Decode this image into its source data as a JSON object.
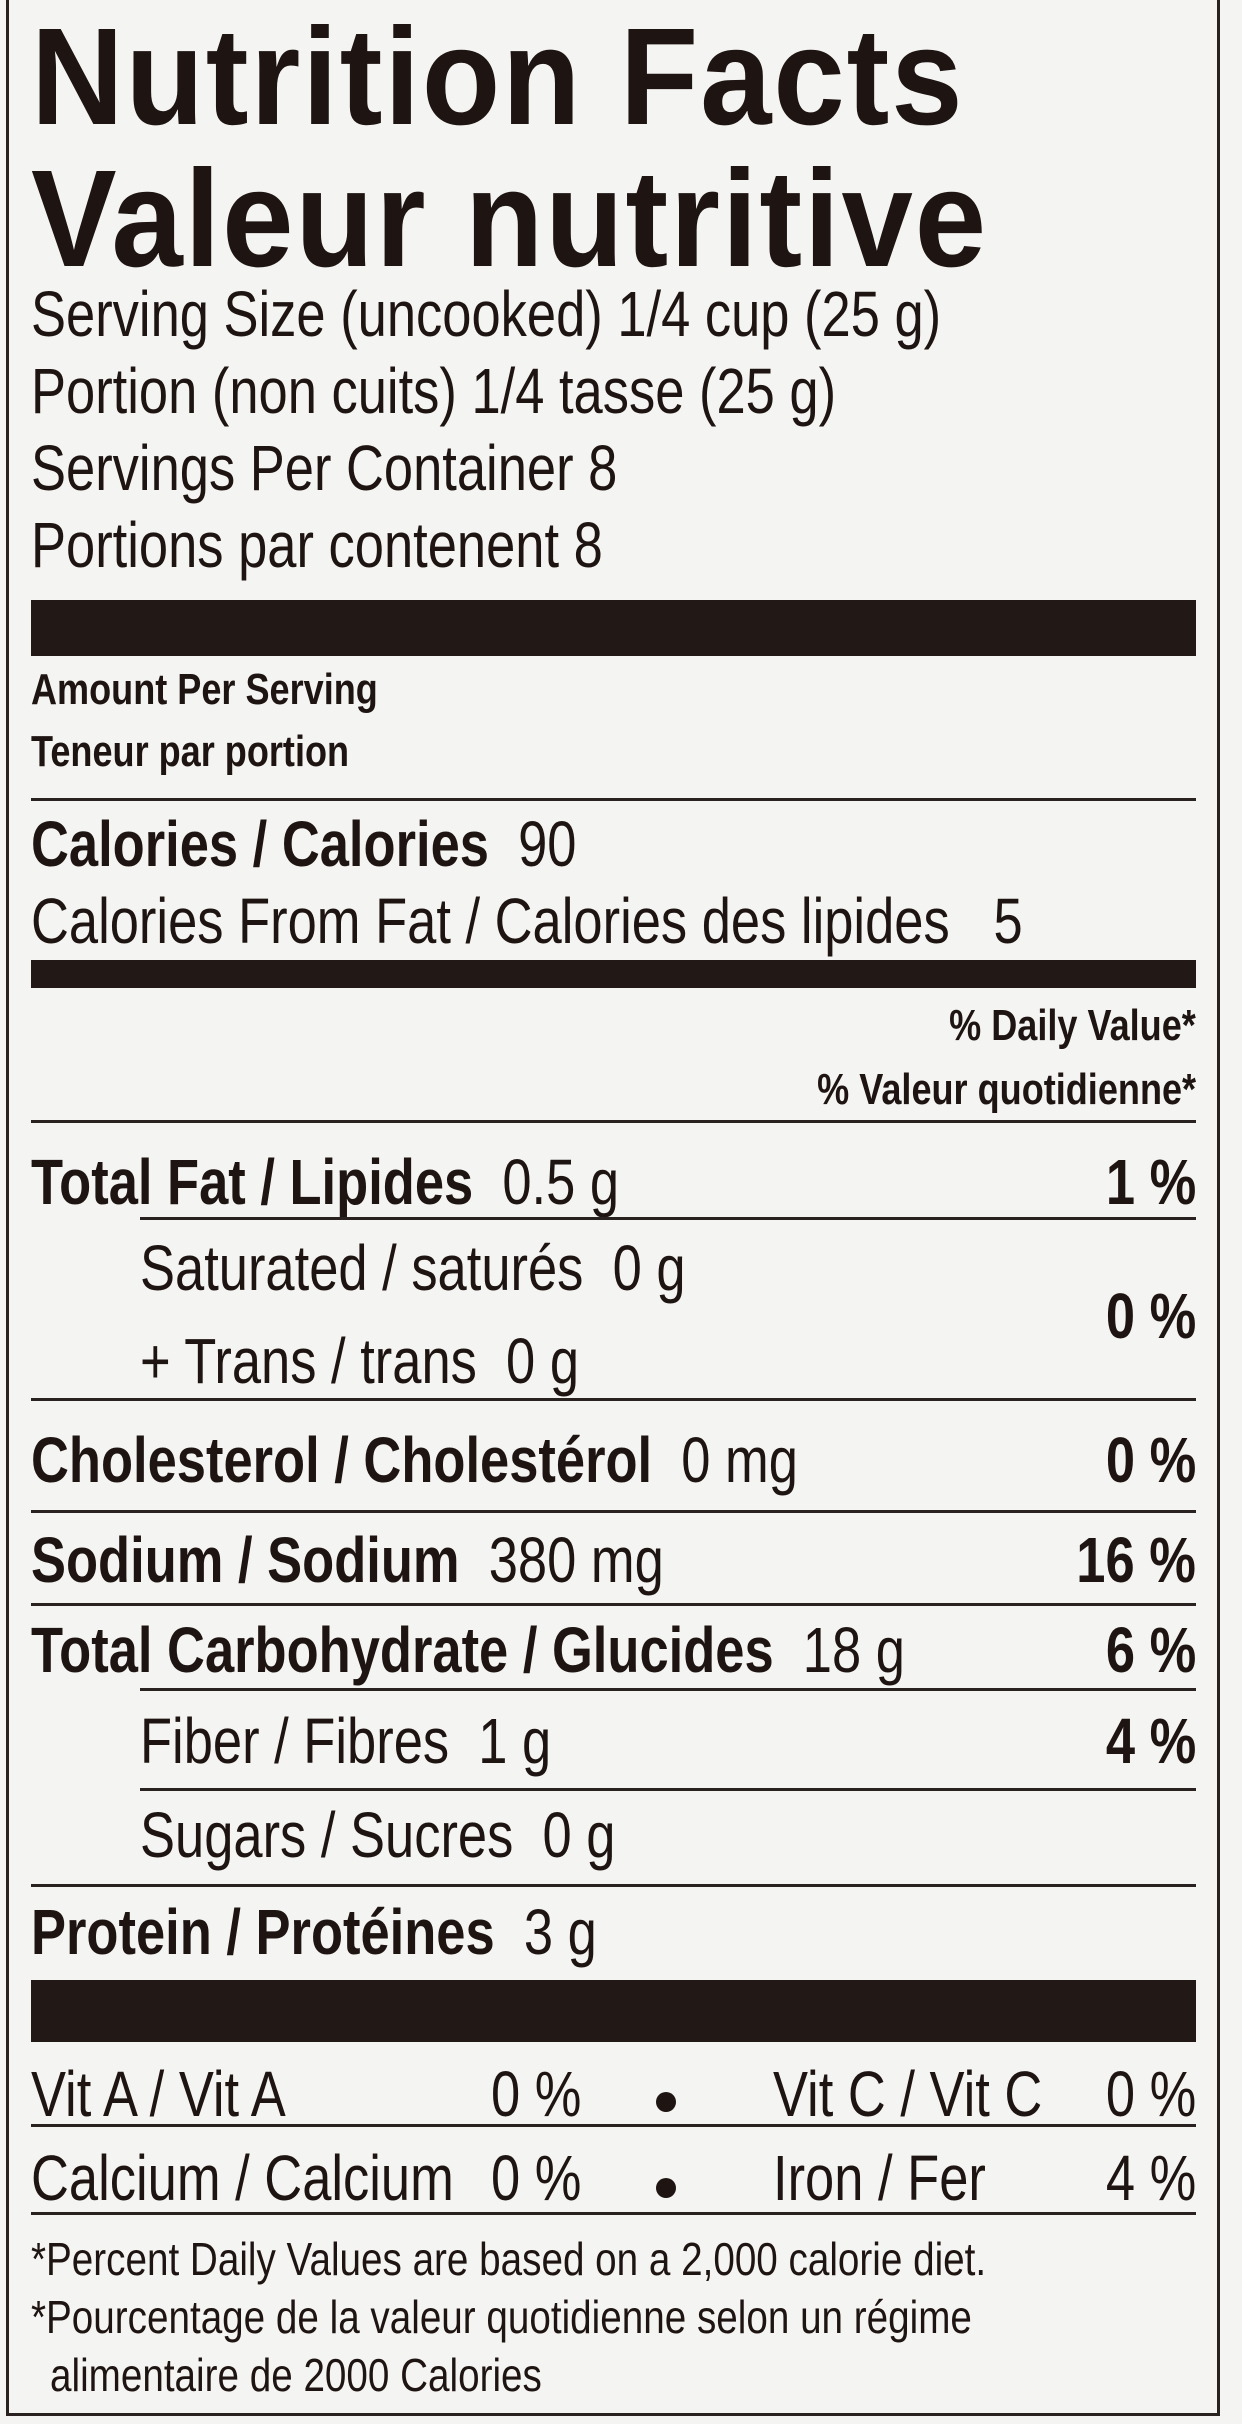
{
  "title_en": "Nutrition Facts",
  "title_fr": "Valeur nutritive",
  "serving_size": "Serving Size (uncooked)  1/4 cup (25 g)",
  "portion": "Portion (non cuits)  1/4 tasse (25 g)",
  "servings_per_container": "Servings Per Container  8",
  "portions_par_contenant": "Portions par contenent  8",
  "amount_per_serving": "Amount Per Serving",
  "teneur_par_portion": "Teneur par portion",
  "calories": {
    "label": "Calories / Calories",
    "value": "90"
  },
  "calories_from_fat": {
    "label": "Calories From Fat / Calories des lipides",
    "value": "5"
  },
  "daily_value_en": "% Daily Value*",
  "daily_value_fr": "% Valeur quotidienne*",
  "nutrients": {
    "total_fat": {
      "label": "Total Fat / Lipides",
      "amount": "0.5 g",
      "dv": "1 %"
    },
    "saturated": {
      "label": "Saturated / saturés",
      "amount": "0 g"
    },
    "trans": {
      "label": "+ Trans / trans",
      "amount": "0 g"
    },
    "sat_trans_dv": "0 %",
    "cholesterol": {
      "label": "Cholesterol / Cholestérol",
      "amount": "0 mg",
      "dv": "0 %"
    },
    "sodium": {
      "label": "Sodium / Sodium",
      "amount": "380 mg",
      "dv": "16 %"
    },
    "carbohydrate": {
      "label": "Total Carbohydrate / Glucides",
      "amount": "18 g",
      "dv": "6 %"
    },
    "fiber": {
      "label": "Fiber / Fibres",
      "amount": "1 g",
      "dv": "4 %"
    },
    "sugars": {
      "label": "Sugars / Sucres",
      "amount": "0 g"
    },
    "protein": {
      "label": "Protein / Protéines",
      "amount": "3 g"
    }
  },
  "vitamins": {
    "vit_a": {
      "label": "Vit A / Vit A",
      "dv": "0 %"
    },
    "vit_c": {
      "label": "Vit C / Vit C",
      "dv": "0 %"
    },
    "calcium": {
      "label": "Calcium / Calcium",
      "dv": "0 %"
    },
    "iron": {
      "label": "Iron / Fer",
      "dv": "4 %"
    }
  },
  "footnote_en": "*Percent Daily Values are based on a 2,000 calorie diet.",
  "footnote_fr_1": "*Pourcentage de la valeur quotidienne selon un régime",
  "footnote_fr_2": "alimentaire de 2000 Calories"
}
